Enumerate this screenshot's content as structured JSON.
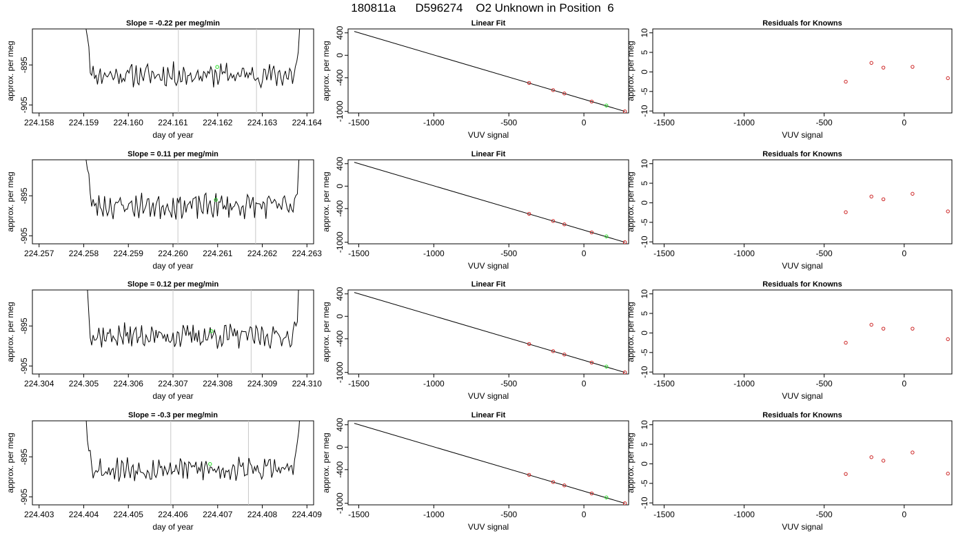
{
  "page": {
    "title": "180811a      D596274    O2 Unknown in Position  6"
  },
  "chart_data": [
    {
      "type": "line",
      "panel": "timeseries",
      "row": 0,
      "title": "Slope =  -0.22  per meg/min",
      "xlabel": "day of year",
      "ylabel": "approx. per meg",
      "xlim": [
        224.15785,
        224.16415
      ],
      "ylim": [
        -907,
        -886
      ],
      "xticks": [
        224.158,
        224.159,
        224.16,
        224.161,
        224.162,
        224.163,
        224.164
      ],
      "xtick_labels": [
        "224.158",
        "224.159",
        "224.160",
        "224.161",
        "224.162",
        "224.163",
        "224.164"
      ],
      "yticks": [
        -895,
        -905
      ],
      "ytick_labels": [
        "-895",
        "-905"
      ],
      "vlines": [
        224.16112,
        224.16287
      ],
      "start_x": 224.15905,
      "end_x": 224.16387,
      "base_y": -897.5,
      "noise_amp": 2.2,
      "seed": 11,
      "green_point": {
        "x": 224.16199,
        "y": -895.5
      },
      "grid": false
    },
    {
      "type": "scatter",
      "panel": "linear_fit",
      "row": 0,
      "title": "Linear Fit",
      "xlabel": "VUV signal",
      "ylabel": "approx. per meg",
      "xlim": [
        -1571,
        298
      ],
      "ylim": [
        -1028,
        470
      ],
      "xticks": [
        -1500,
        -1000,
        -500,
        0
      ],
      "xtick_labels": [
        "-1500",
        "-1000",
        "-500",
        "0"
      ],
      "yticks": [
        400,
        0,
        -400,
        -1000
      ],
      "ytick_labels": [
        "400",
        "0",
        "-400",
        "-1000"
      ],
      "fit_line": {
        "x": [
          -1530,
          273
        ],
        "y": [
          425,
          -1000
        ]
      },
      "known_points": [
        {
          "x": -365,
          "y": -493
        },
        {
          "x": -205,
          "y": -621
        },
        {
          "x": -130,
          "y": -681
        },
        {
          "x": 52,
          "y": -825
        },
        {
          "x": 273,
          "y": -1000
        }
      ],
      "unknown_point": {
        "x": 150,
        "y": -896
      }
    },
    {
      "type": "scatter",
      "panel": "residuals",
      "row": 0,
      "title": "Residuals for Knowns",
      "xlabel": "VUV signal",
      "ylabel": "approx. per meg",
      "xlim": [
        -1571,
        298
      ],
      "ylim": [
        -10.5,
        11
      ],
      "xticks": [
        -1500,
        -1000,
        -500,
        0
      ],
      "xtick_labels": [
        "-1500",
        "-1000",
        "-500",
        "0"
      ],
      "yticks": [
        10,
        5,
        0,
        -5,
        -10
      ],
      "ytick_labels": [
        "10",
        "5",
        "0",
        "-5",
        "-10"
      ],
      "points": [
        {
          "x": -365,
          "y": -2.5
        },
        {
          "x": -205,
          "y": 2.3
        },
        {
          "x": -130,
          "y": 1.1
        },
        {
          "x": 52,
          "y": 1.3
        },
        {
          "x": 273,
          "y": -1.6
        }
      ]
    },
    {
      "type": "line",
      "panel": "timeseries",
      "row": 1,
      "title": "Slope =  0.11  per meg/min",
      "xlabel": "day of year",
      "ylabel": "approx. per meg",
      "xlim": [
        224.25685,
        224.26315
      ],
      "ylim": [
        -907,
        -886
      ],
      "xticks": [
        224.257,
        224.258,
        224.259,
        224.26,
        224.261,
        224.262,
        224.263
      ],
      "xtick_labels": [
        "224.257",
        "224.258",
        "224.259",
        "224.260",
        "224.261",
        "224.262",
        "224.263"
      ],
      "yticks": [
        -895,
        -905
      ],
      "ytick_labels": [
        "-895",
        "-905"
      ],
      "vlines": [
        224.26011,
        224.26185
      ],
      "start_x": 224.25805,
      "end_x": 224.26285,
      "base_y": -897.5,
      "noise_amp": 2.4,
      "seed": 23,
      "green_point": {
        "x": 224.26096,
        "y": -896.0
      },
      "grid": false
    },
    {
      "type": "scatter",
      "panel": "linear_fit",
      "row": 1,
      "title": "Linear Fit",
      "xlabel": "VUV signal",
      "ylabel": "approx. per meg",
      "xlim": [
        -1571,
        298
      ],
      "ylim": [
        -1028,
        470
      ],
      "xticks": [
        -1500,
        -1000,
        -500,
        0
      ],
      "xtick_labels": [
        "-1500",
        "-1000",
        "-500",
        "0"
      ],
      "yticks": [
        400,
        0,
        -400,
        -1000
      ],
      "ytick_labels": [
        "400",
        "0",
        "-400",
        "-1000"
      ],
      "fit_line": {
        "x": [
          -1530,
          273
        ],
        "y": [
          425,
          -1000
        ]
      },
      "known_points": [
        {
          "x": -365,
          "y": -493
        },
        {
          "x": -205,
          "y": -621
        },
        {
          "x": -130,
          "y": -681
        },
        {
          "x": 52,
          "y": -825
        },
        {
          "x": 273,
          "y": -1000
        }
      ],
      "unknown_point": {
        "x": 150,
        "y": -896
      }
    },
    {
      "type": "scatter",
      "panel": "residuals",
      "row": 1,
      "title": "Residuals for Knowns",
      "xlabel": "VUV signal",
      "ylabel": "approx. per meg",
      "xlim": [
        -1571,
        298
      ],
      "ylim": [
        -10.5,
        11
      ],
      "xticks": [
        -1500,
        -1000,
        -500,
        0
      ],
      "xtick_labels": [
        "-1500",
        "-1000",
        "-500",
        "0"
      ],
      "yticks": [
        10,
        5,
        0,
        -5,
        -10
      ],
      "ytick_labels": [
        "10",
        "5",
        "0",
        "-5",
        "-10"
      ],
      "points": [
        {
          "x": -365,
          "y": -2.4
        },
        {
          "x": -205,
          "y": 1.6
        },
        {
          "x": -130,
          "y": 0.9
        },
        {
          "x": 52,
          "y": 2.3
        },
        {
          "x": 273,
          "y": -2.2
        }
      ]
    },
    {
      "type": "line",
      "panel": "timeseries",
      "row": 2,
      "title": "Slope =  0.12  per meg/min",
      "xlabel": "day of year",
      "ylabel": "approx. per meg",
      "xlim": [
        224.30385,
        224.31015
      ],
      "ylim": [
        -907,
        -886
      ],
      "xticks": [
        224.304,
        224.305,
        224.306,
        224.307,
        224.308,
        224.309,
        224.31
      ],
      "xtick_labels": [
        "224.304",
        "224.305",
        "224.306",
        "224.307",
        "224.308",
        "224.309",
        "224.310"
      ],
      "yticks": [
        -895,
        -905
      ],
      "ytick_labels": [
        "-895",
        "-905"
      ],
      "vlines": [
        224.307,
        224.30875
      ],
      "start_x": 224.30505,
      "end_x": 224.30985,
      "base_y": -897.5,
      "noise_amp": 2.3,
      "seed": 37,
      "green_point": {
        "x": 224.30786,
        "y": -896.3
      },
      "grid": false
    },
    {
      "type": "scatter",
      "panel": "linear_fit",
      "row": 2,
      "title": "Linear Fit",
      "xlabel": "VUV signal",
      "ylabel": "approx. per meg",
      "xlim": [
        -1571,
        298
      ],
      "ylim": [
        -1028,
        470
      ],
      "xticks": [
        -1500,
        -1000,
        -500,
        0
      ],
      "xtick_labels": [
        "-1500",
        "-1000",
        "-500",
        "0"
      ],
      "yticks": [
        400,
        0,
        -400,
        -1000
      ],
      "ytick_labels": [
        "400",
        "0",
        "-400",
        "-1000"
      ],
      "fit_line": {
        "x": [
          -1530,
          273
        ],
        "y": [
          425,
          -1000
        ]
      },
      "known_points": [
        {
          "x": -365,
          "y": -493
        },
        {
          "x": -205,
          "y": -621
        },
        {
          "x": -130,
          "y": -681
        },
        {
          "x": 52,
          "y": -825
        },
        {
          "x": 273,
          "y": -1000
        }
      ],
      "unknown_point": {
        "x": 150,
        "y": -896
      }
    },
    {
      "type": "scatter",
      "panel": "residuals",
      "row": 2,
      "title": "Residuals for Knowns",
      "xlabel": "VUV signal",
      "ylabel": "approx. per meg",
      "xlim": [
        -1571,
        298
      ],
      "ylim": [
        -10.5,
        11
      ],
      "xticks": [
        -1500,
        -1000,
        -500,
        0
      ],
      "xtick_labels": [
        "-1500",
        "-1000",
        "-500",
        "0"
      ],
      "yticks": [
        10,
        5,
        0,
        -5,
        -10
      ],
      "ytick_labels": [
        "10",
        "5",
        "0",
        "-5",
        "-10"
      ],
      "points": [
        {
          "x": -365,
          "y": -2.5
        },
        {
          "x": -205,
          "y": 2.1
        },
        {
          "x": -130,
          "y": 1.1
        },
        {
          "x": 52,
          "y": 1.1
        },
        {
          "x": 273,
          "y": -1.6
        }
      ]
    },
    {
      "type": "line",
      "panel": "timeseries",
      "row": 3,
      "title": "Slope =  -0.3  per meg/min",
      "xlabel": "day of year",
      "ylabel": "approx. per meg",
      "xlim": [
        224.40285,
        224.40915
      ],
      "ylim": [
        -907,
        -886
      ],
      "xticks": [
        224.403,
        224.404,
        224.405,
        224.406,
        224.407,
        224.408,
        224.409
      ],
      "xtick_labels": [
        "224.403",
        "224.404",
        "224.405",
        "224.406",
        "224.407",
        "224.408",
        "224.409"
      ],
      "yticks": [
        -895,
        -905
      ],
      "ytick_labels": [
        "-895",
        "-905"
      ],
      "vlines": [
        224.40595,
        224.40769
      ],
      "start_x": 224.40405,
      "end_x": 224.40885,
      "base_y": -898,
      "noise_amp": 2.4,
      "seed": 53,
      "green_point": {
        "x": 224.40683,
        "y": -896.8
      },
      "grid": false
    },
    {
      "type": "scatter",
      "panel": "linear_fit",
      "row": 3,
      "title": "Linear Fit",
      "xlabel": "VUV signal",
      "ylabel": "approx. per meg",
      "xlim": [
        -1571,
        298
      ],
      "ylim": [
        -1028,
        470
      ],
      "xticks": [
        -1500,
        -1000,
        -500,
        0
      ],
      "xtick_labels": [
        "-1500",
        "-1000",
        "-500",
        "0"
      ],
      "yticks": [
        400,
        0,
        -400,
        -1000
      ],
      "ytick_labels": [
        "400",
        "0",
        "-400",
        "-1000"
      ],
      "fit_line": {
        "x": [
          -1530,
          273
        ],
        "y": [
          425,
          -1000
        ]
      },
      "known_points": [
        {
          "x": -365,
          "y": -493
        },
        {
          "x": -205,
          "y": -621
        },
        {
          "x": -130,
          "y": -681
        },
        {
          "x": 52,
          "y": -825
        },
        {
          "x": 273,
          "y": -1000
        }
      ],
      "unknown_point": {
        "x": 150,
        "y": -896
      }
    },
    {
      "type": "scatter",
      "panel": "residuals",
      "row": 3,
      "title": "Residuals for Knowns",
      "xlabel": "VUV signal",
      "ylabel": "approx. per meg",
      "xlim": [
        -1571,
        298
      ],
      "ylim": [
        -10.5,
        11
      ],
      "xticks": [
        -1500,
        -1000,
        -500,
        0
      ],
      "xtick_labels": [
        "-1500",
        "-1000",
        "-500",
        "0"
      ],
      "yticks": [
        10,
        5,
        0,
        -5,
        -10
      ],
      "ytick_labels": [
        "10",
        "5",
        "0",
        "-5",
        "-10"
      ],
      "points": [
        {
          "x": -365,
          "y": -2.6
        },
        {
          "x": -205,
          "y": 1.7
        },
        {
          "x": -130,
          "y": 0.8
        },
        {
          "x": 52,
          "y": 2.9
        },
        {
          "x": 273,
          "y": -2.5
        }
      ]
    }
  ],
  "colors": {
    "axis": "#000000",
    "trace": "#000000",
    "vline": "#c8c8c8",
    "known_point": "#cc2222",
    "unknown_point": "#22dd22"
  }
}
